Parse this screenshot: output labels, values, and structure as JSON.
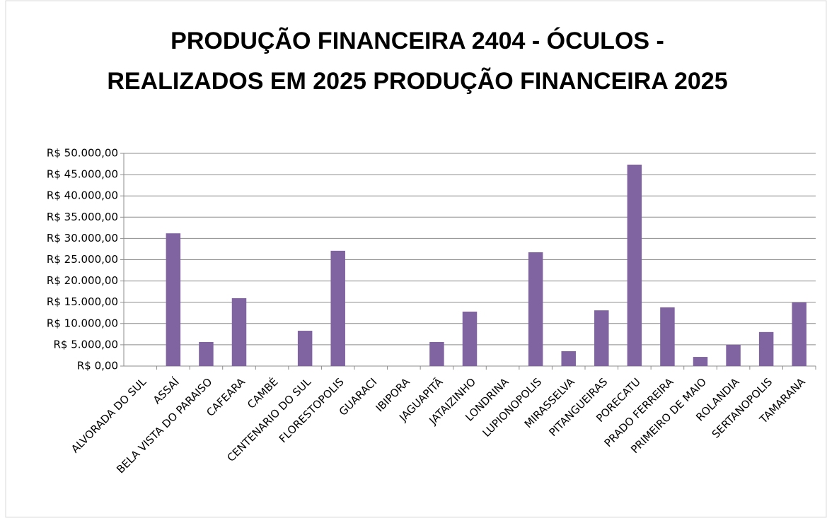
{
  "chart_data": {
    "type": "bar",
    "title": "PRODUÇÃO FINANCEIRA 2404 - ÓCULOS - REALIZADOS EM 2025 PRODUÇÃO FINANCEIRA 2025",
    "categories": [
      "ALVORADA DO SUL",
      "ASSAÍ",
      "BELA VISTA DO PARAISO",
      "CAFEARA",
      "CAMBÉ",
      "CENTENARIO DO SUL",
      "FLORESTOPOLIS",
      "GUARACI",
      "IBIPORA",
      "JAGUAPITÃ",
      "JATAIZINHO",
      "LONDRINA",
      "LUPIONOPOLIS",
      "MIRASSELVA",
      "PITANGUEIRAS",
      "PORECATU",
      "PRADO FERREIRA",
      "PRIMEIRO DE MAIO",
      "ROLANDIA",
      "SERTANOPOLIS",
      "TAMARANA"
    ],
    "values": [
      0,
      31200,
      5650,
      15950,
      0,
      8300,
      27100,
      0,
      0,
      5650,
      12800,
      0,
      26750,
      3500,
      13100,
      47350,
      13800,
      2150,
      5000,
      8000,
      14950
    ],
    "color": "#8064a2",
    "ylim": [
      0,
      50000
    ],
    "yticks": [
      {
        "value": 0,
        "label": "R$ 0,00"
      },
      {
        "value": 5000,
        "label": "R$ 5.000,00"
      },
      {
        "value": 10000,
        "label": "R$ 10.000,00"
      },
      {
        "value": 15000,
        "label": "R$ 15.000,00"
      },
      {
        "value": 20000,
        "label": "R$ 20.000,00"
      },
      {
        "value": 25000,
        "label": "R$ 25.000,00"
      },
      {
        "value": 30000,
        "label": "R$ 30.000,00"
      },
      {
        "value": 35000,
        "label": "R$ 35.000,00"
      },
      {
        "value": 40000,
        "label": "R$ 40.000,00"
      },
      {
        "value": 45000,
        "label": "R$ 45.000,00"
      },
      {
        "value": 50000,
        "label": "R$ 50.000,00"
      }
    ],
    "grid": true
  }
}
